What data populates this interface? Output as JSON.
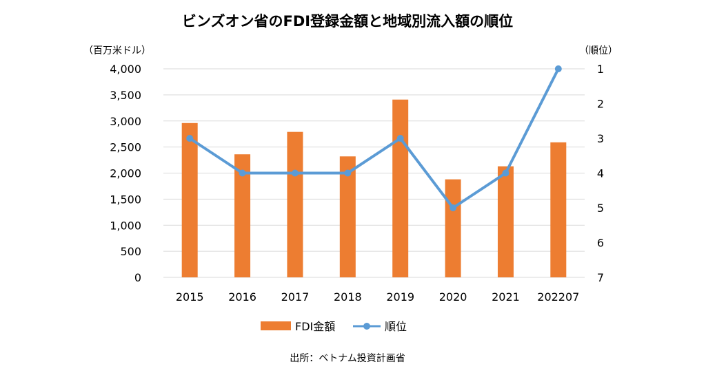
{
  "chart_data": {
    "type": "bar",
    "title": "ビンズオン省のFDI登録金額と地域別流入額の順位",
    "y_left_unit": "（百万米ドル）",
    "y_right_unit": "（順位）",
    "categories": [
      "2015",
      "2016",
      "2017",
      "2018",
      "2019",
      "2020",
      "2021",
      "202207"
    ],
    "series": [
      {
        "name": "FDI金額",
        "type": "bar",
        "axis": "left",
        "color": "#ed7d31",
        "values": [
          2960,
          2360,
          2790,
          2320,
          3410,
          1880,
          2130,
          2590
        ]
      },
      {
        "name": "順位",
        "type": "line",
        "axis": "right",
        "color": "#5b9bd5",
        "values": [
          3,
          4,
          4,
          4,
          3,
          5,
          4,
          1
        ]
      }
    ],
    "y_left": {
      "min": 0,
      "max": 4000,
      "ticks": [
        "0",
        "500",
        "1,000",
        "1,500",
        "2,000",
        "2,500",
        "3,000",
        "3,500",
        "4,000"
      ],
      "tick_values": [
        0,
        500,
        1000,
        1500,
        2000,
        2500,
        3000,
        3500,
        4000
      ]
    },
    "y_right": {
      "min": 1,
      "max": 7,
      "reversed": true,
      "ticks": [
        "1",
        "2",
        "3",
        "4",
        "5",
        "6",
        "7"
      ],
      "tick_values": [
        1,
        2,
        3,
        4,
        5,
        6,
        7
      ]
    },
    "grid": true,
    "legend_position": "bottom"
  },
  "source": "出所：ベトナム投資計画省"
}
